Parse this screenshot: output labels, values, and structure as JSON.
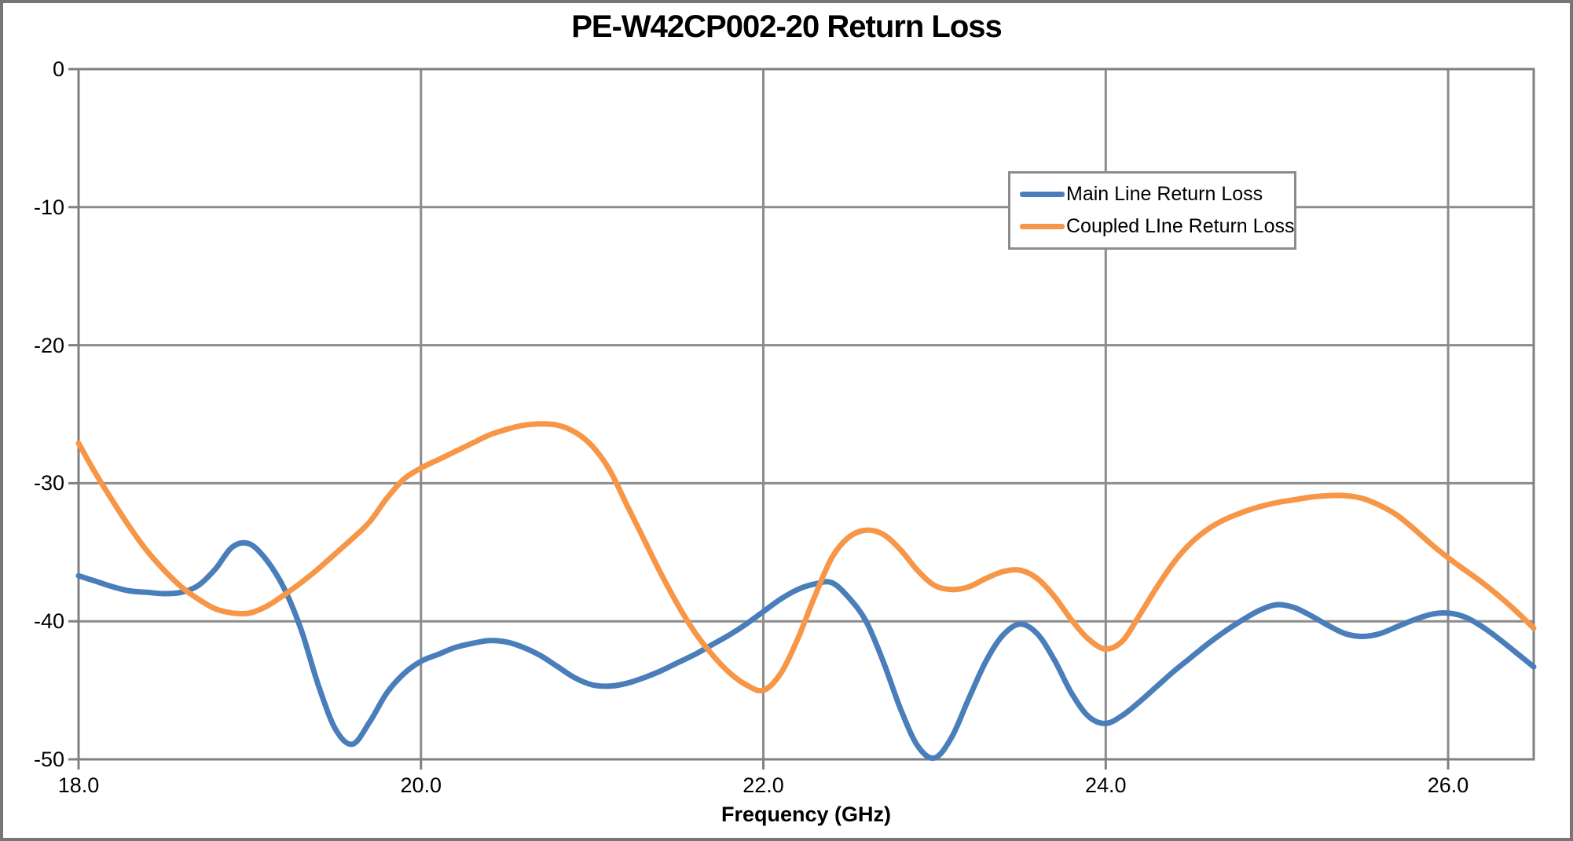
{
  "chart": {
    "title": "PE-W42CP002-20 Return Loss",
    "x_axis_label": "Frequency (GHz)"
  },
  "legend": {
    "items": [
      {
        "label": "Main Line Return Loss",
        "color": "#4A7EBB"
      },
      {
        "label": "Coupled LIne Return Loss",
        "color": "#F79646"
      }
    ]
  },
  "colors": {
    "main_line": "#4A7EBB",
    "coupled_line": "#F79646",
    "gridline": "#8C8C8C",
    "axis_border": "#808080",
    "outer_border": "#767676",
    "text": "#000000",
    "background": "#FFFFFF"
  },
  "chart_data": {
    "type": "line",
    "title": "PE-W42CP002-20 Return Loss",
    "xlabel": "Frequency (GHz)",
    "ylabel": "",
    "xlim": [
      18.0,
      26.5
    ],
    "ylim": [
      -50,
      0
    ],
    "grid": true,
    "legend_position": "inside-upper-right",
    "x_start": 18.0,
    "x_step": 0.1,
    "x_ticks": [
      {
        "label": "18.0",
        "value": 18.0
      },
      {
        "label": "20.0",
        "value": 20.0
      },
      {
        "label": "22.0",
        "value": 22.0
      },
      {
        "label": "24.0",
        "value": 24.0
      },
      {
        "label": "26.0",
        "value": 26.0
      }
    ],
    "y_ticks": [
      {
        "label": "0",
        "value": 0
      },
      {
        "label": "-10",
        "value": -10
      },
      {
        "label": "-20",
        "value": -20
      },
      {
        "label": "-30",
        "value": -30
      },
      {
        "label": "-40",
        "value": -40
      },
      {
        "label": "-50",
        "value": -50
      }
    ],
    "series": [
      {
        "name": "Main Line Return Loss",
        "color": "#4A7EBB",
        "values": [
          -36.7,
          -37.1,
          -37.5,
          -37.8,
          -37.9,
          -38.0,
          -37.9,
          -37.4,
          -36.2,
          -34.6,
          -34.4,
          -35.6,
          -37.6,
          -40.6,
          -44.6,
          -47.8,
          -48.9,
          -47.3,
          -45.2,
          -43.8,
          -42.9,
          -42.4,
          -41.9,
          -41.6,
          -41.4,
          -41.5,
          -41.9,
          -42.5,
          -43.3,
          -44.1,
          -44.6,
          -44.7,
          -44.5,
          -44.1,
          -43.6,
          -43.0,
          -42.4,
          -41.7,
          -41.0,
          -40.2,
          -39.3,
          -38.4,
          -37.7,
          -37.3,
          -37.2,
          -38.3,
          -40.0,
          -42.9,
          -46.3,
          -49.0,
          -49.9,
          -48.4,
          -45.6,
          -42.9,
          -41.0,
          -40.2,
          -40.9,
          -42.8,
          -45.2,
          -46.9,
          -47.4,
          -46.8,
          -45.8,
          -44.7,
          -43.6,
          -42.6,
          -41.6,
          -40.7,
          -39.9,
          -39.2,
          -38.8,
          -39.0,
          -39.6,
          -40.3,
          -40.9,
          -41.1,
          -40.9,
          -40.4,
          -39.9,
          -39.5,
          -39.4,
          -39.7,
          -40.4,
          -41.3,
          -42.3,
          -43.3
        ]
      },
      {
        "name": "Coupled LIne Return Loss",
        "color": "#F79646",
        "values": [
          -27.1,
          -29.3,
          -31.3,
          -33.2,
          -34.9,
          -36.3,
          -37.5,
          -38.4,
          -39.1,
          -39.4,
          -39.4,
          -38.9,
          -38.1,
          -37.2,
          -36.2,
          -35.1,
          -34.0,
          -32.8,
          -31.1,
          -29.7,
          -28.9,
          -28.3,
          -27.7,
          -27.1,
          -26.5,
          -26.1,
          -25.8,
          -25.7,
          -25.8,
          -26.3,
          -27.3,
          -29.0,
          -31.5,
          -34.0,
          -36.5,
          -38.8,
          -40.8,
          -42.4,
          -43.7,
          -44.6,
          -45.0,
          -43.8,
          -41.3,
          -38.2,
          -35.4,
          -33.9,
          -33.4,
          -33.7,
          -34.8,
          -36.3,
          -37.4,
          -37.7,
          -37.5,
          -36.9,
          -36.4,
          -36.3,
          -36.9,
          -38.2,
          -39.9,
          -41.3,
          -42.0,
          -41.4,
          -39.5,
          -37.5,
          -35.7,
          -34.3,
          -33.3,
          -32.6,
          -32.1,
          -31.7,
          -31.4,
          -31.2,
          -31.0,
          -30.9,
          -30.9,
          -31.1,
          -31.6,
          -32.3,
          -33.3,
          -34.4,
          -35.4,
          -36.3,
          -37.2,
          -38.2,
          -39.3,
          -40.5
        ]
      }
    ]
  }
}
